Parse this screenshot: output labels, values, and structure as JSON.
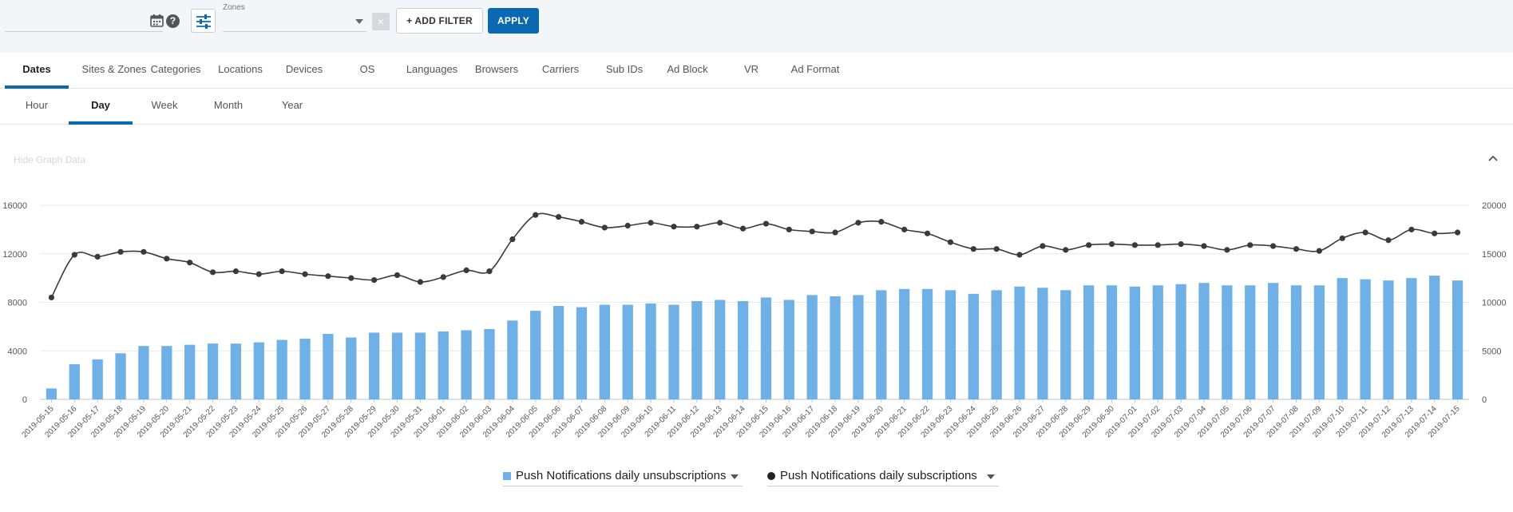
{
  "filters": {
    "date_value": "",
    "zones_label": "Zones",
    "zones_value": "",
    "clear_label": "×",
    "add_filter_label": "+ ADD FILTER",
    "apply_label": "APPLY",
    "help_label": "?"
  },
  "tabs": [
    "Dates",
    "Sites & Zones",
    "Categories",
    "Locations",
    "Devices",
    "OS",
    "Languages",
    "Browsers",
    "Carriers",
    "Sub IDs",
    "Ad Block",
    "VR",
    "Ad Format"
  ],
  "active_tab": "Dates",
  "period_tabs": [
    "Hour",
    "Day",
    "Week",
    "Month",
    "Year"
  ],
  "active_period": "Day",
  "hide_graph_label": "Hide Graph Data",
  "icons": {
    "calendar": "calendar-icon",
    "help": "help-icon",
    "settings": "sliders-icon",
    "caret": "chevron-down-icon",
    "collapse": "chevron-up-icon"
  },
  "colors": {
    "accent": "#0b69b2",
    "bar": "#6fb1e6",
    "line": "#3a3a3a"
  },
  "chart_data": {
    "type": "bar+line",
    "x": [
      "2019-05-15",
      "2019-05-16",
      "2019-05-17",
      "2019-05-18",
      "2019-05-19",
      "2019-05-20",
      "2019-05-21",
      "2019-05-22",
      "2019-05-23",
      "2019-05-24",
      "2019-05-25",
      "2019-05-26",
      "2019-05-27",
      "2019-05-28",
      "2019-05-29",
      "2019-05-30",
      "2019-05-31",
      "2019-06-01",
      "2019-06-02",
      "2019-06-03",
      "2019-06-04",
      "2019-06-05",
      "2019-06-06",
      "2019-06-07",
      "2019-06-08",
      "2019-06-09",
      "2019-06-10",
      "2019-06-11",
      "2019-06-12",
      "2019-06-13",
      "2019-06-14",
      "2019-06-15",
      "2019-06-16",
      "2019-06-17",
      "2019-06-18",
      "2019-06-19",
      "2019-06-20",
      "2019-06-21",
      "2019-06-22",
      "2019-06-23",
      "2019-06-24",
      "2019-06-25",
      "2019-06-26",
      "2019-06-27",
      "2019-06-28",
      "2019-06-29",
      "2019-06-30",
      "2019-07-01",
      "2019-07-02",
      "2019-07-03",
      "2019-07-04",
      "2019-07-05",
      "2019-07-06",
      "2019-07-07",
      "2019-07-08",
      "2019-07-09",
      "2019-07-10",
      "2019-07-11",
      "2019-07-12",
      "2019-07-13",
      "2019-07-14",
      "2019-07-15"
    ],
    "left_axis": {
      "ticks": [
        0,
        4000,
        8000,
        12000,
        16000
      ],
      "range": [
        0,
        16000
      ]
    },
    "right_axis": {
      "ticks": [
        0,
        5000,
        10000,
        15000,
        20000
      ],
      "range": [
        0,
        20000
      ]
    },
    "grid": true,
    "legend_position": "bottom-center",
    "series": [
      {
        "name": "Push Notifications daily unsubscriptions",
        "kind": "bar",
        "axis": "left",
        "values": [
          900,
          2900,
          3300,
          3800,
          4400,
          4400,
          4500,
          4600,
          4600,
          4700,
          4900,
          5000,
          5400,
          5100,
          5500,
          5500,
          5500,
          5600,
          5700,
          5800,
          6500,
          7300,
          7700,
          7600,
          7800,
          7800,
          7900,
          7800,
          8100,
          8200,
          8100,
          8400,
          8200,
          8600,
          8500,
          8600,
          9000,
          9100,
          9100,
          9000,
          8700,
          9000,
          9300,
          9200,
          9000,
          9400,
          9400,
          9300,
          9400,
          9500,
          9600,
          9400,
          9400,
          9600,
          9400,
          9400,
          10000,
          9900,
          9800,
          10000,
          10200,
          9800
        ]
      },
      {
        "name": "Push Notifications daily subscriptions",
        "kind": "line",
        "axis": "right",
        "values": [
          10500,
          14900,
          14700,
          15200,
          15200,
          14500,
          14100,
          13100,
          13200,
          12900,
          13200,
          12900,
          12700,
          12500,
          12300,
          12800,
          12100,
          12600,
          13300,
          13200,
          16500,
          19000,
          18800,
          18300,
          17700,
          17900,
          18200,
          17800,
          17800,
          18200,
          17600,
          18100,
          17500,
          17300,
          17200,
          18200,
          18300,
          17500,
          17100,
          16200,
          15500,
          15500,
          14900,
          15800,
          15400,
          15900,
          16000,
          15900,
          15900,
          16000,
          15800,
          15400,
          15900,
          15800,
          15500,
          15300,
          16600,
          17200,
          16400,
          17500,
          17100,
          17200
        ]
      }
    ]
  }
}
